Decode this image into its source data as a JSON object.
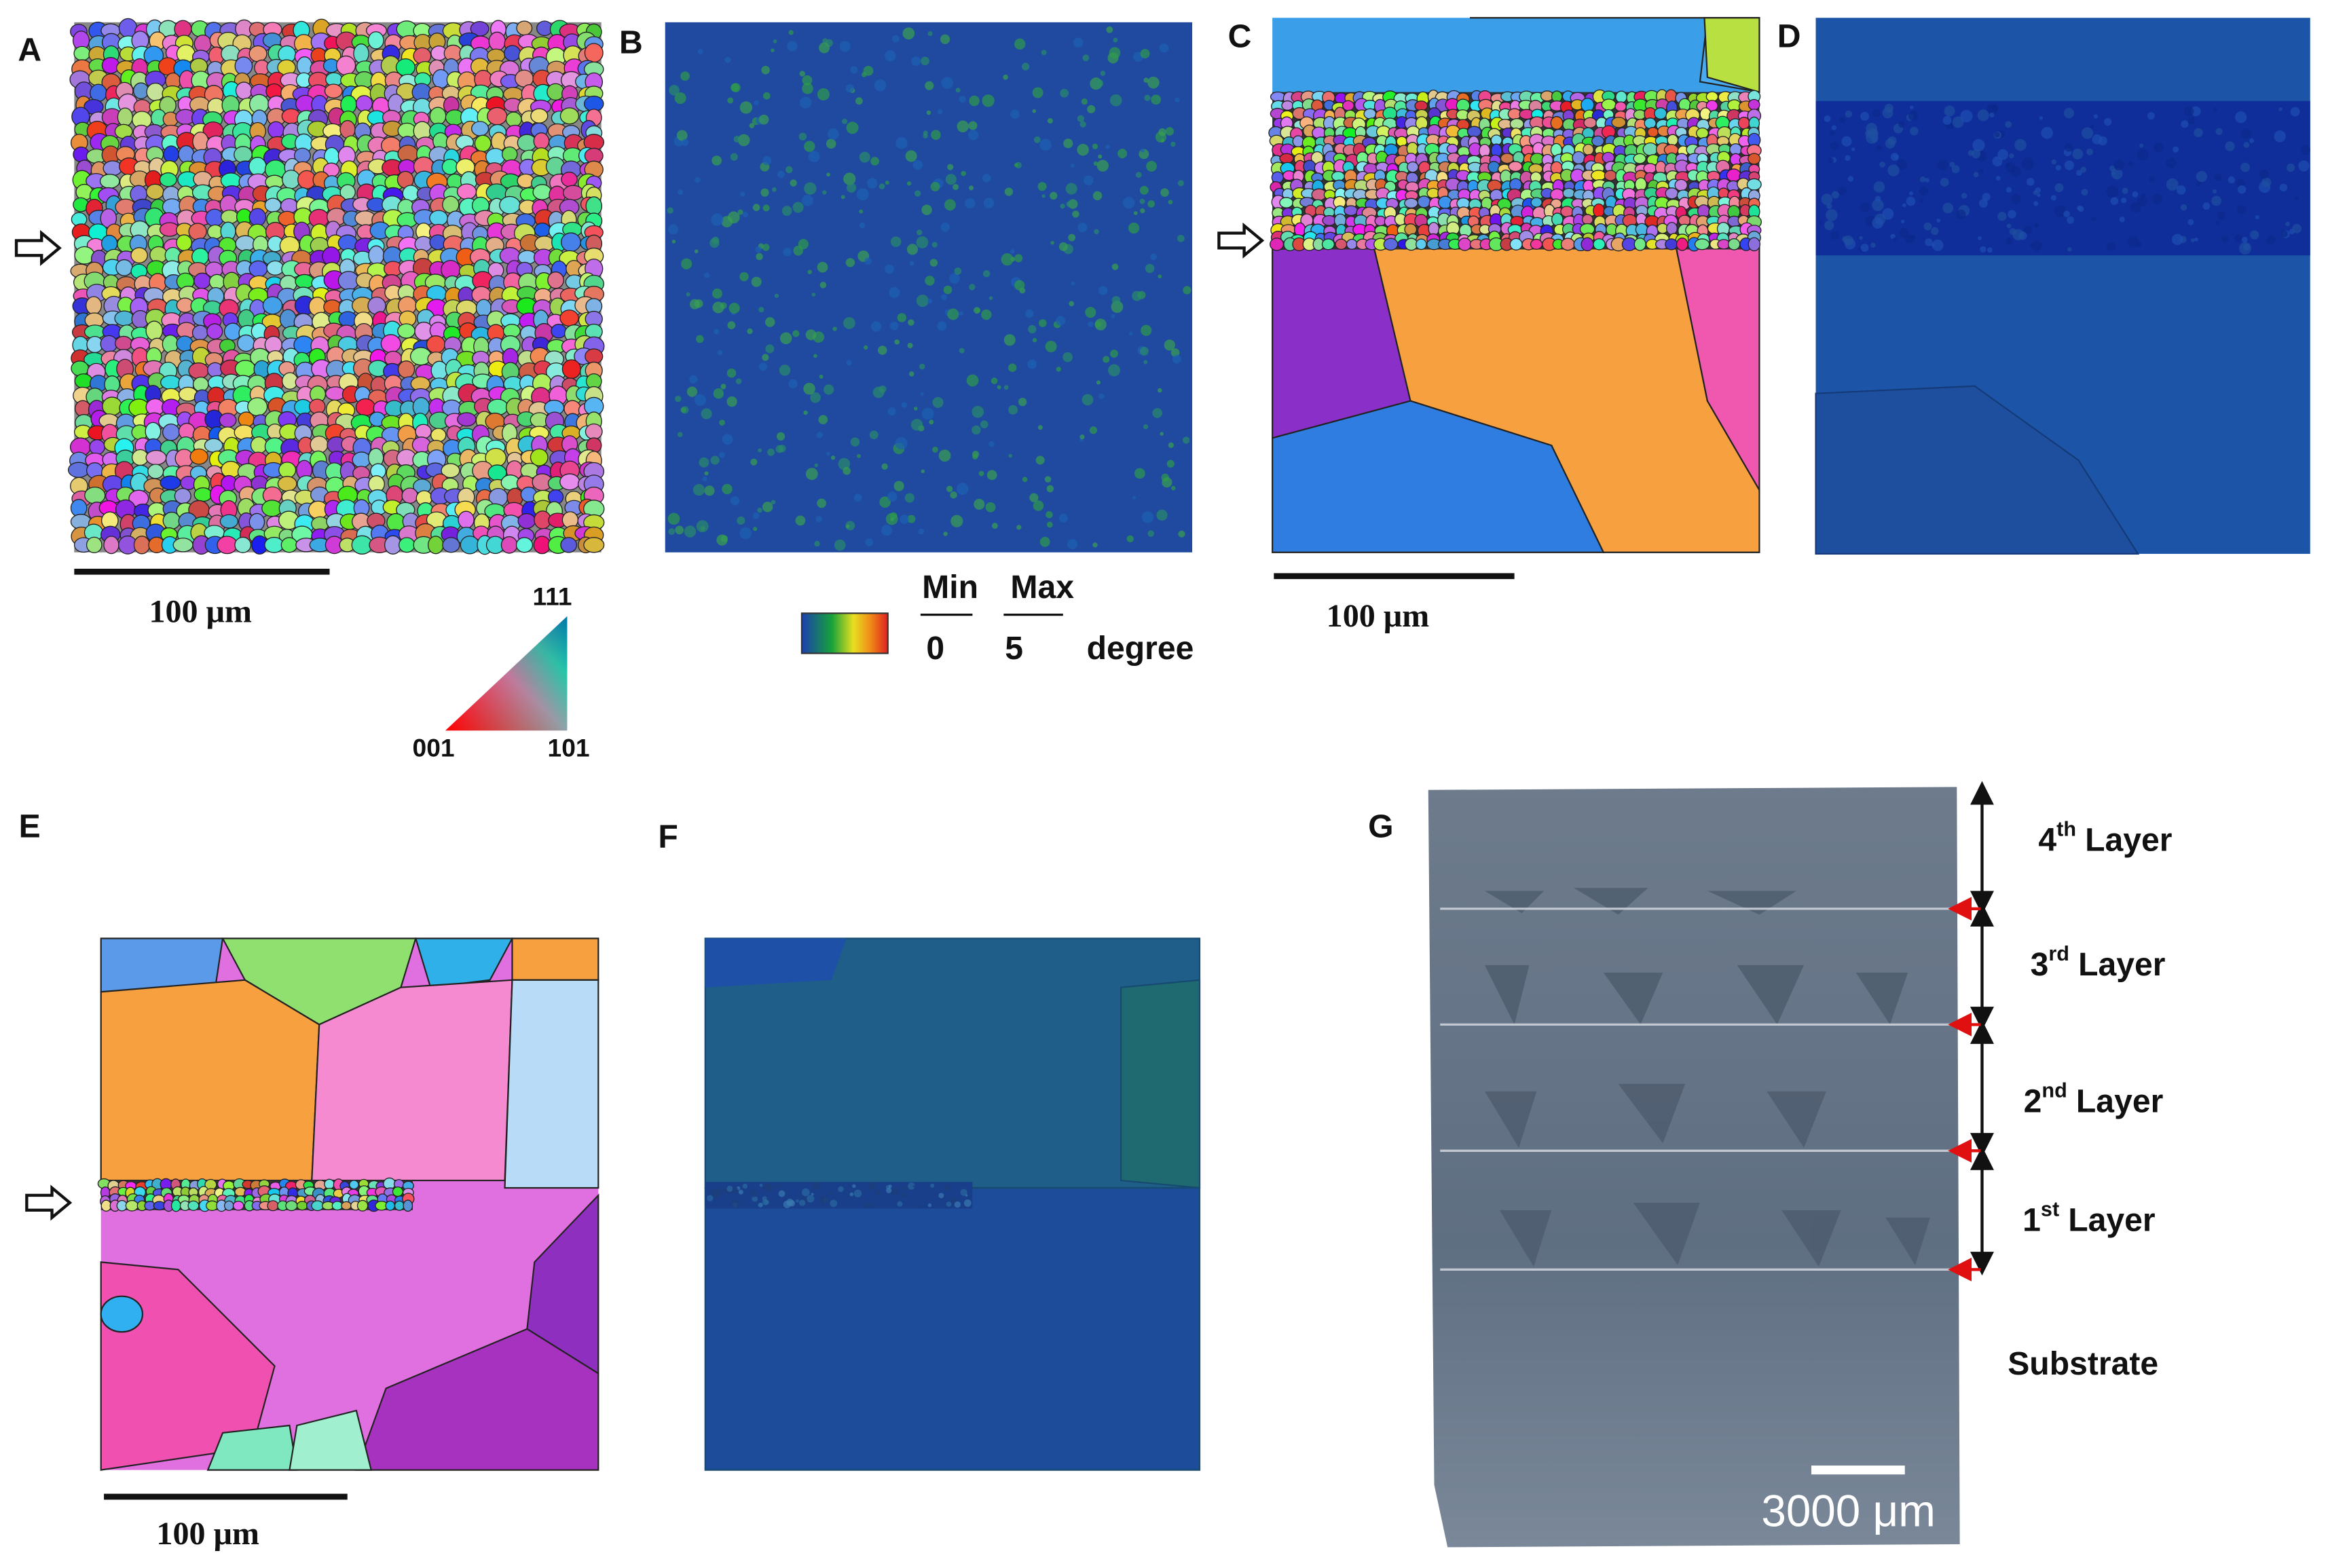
{
  "panel_labels": [
    "A",
    "B",
    "C",
    "D",
    "E",
    "F",
    "G"
  ],
  "scale_bar_labels": [
    "100 μm",
    "100 μm",
    "100 μm",
    "3000 μm"
  ],
  "ipf_key": {
    "corners": [
      "111",
      "001",
      "101"
    ]
  },
  "misorientation_key": {
    "min_label": "Min",
    "max_label": "Max",
    "min": 0,
    "max": 5,
    "unit": "degree"
  },
  "layers": [
    {
      "ordinal": "4",
      "suffix": "th",
      "name": "Layer"
    },
    {
      "ordinal": "3",
      "suffix": "rd",
      "name": "Layer"
    },
    {
      "ordinal": "2",
      "suffix": "nd",
      "name": "Layer"
    },
    {
      "ordinal": "1",
      "suffix": "st",
      "name": "Layer"
    }
  ],
  "substrate": "Substrate"
}
